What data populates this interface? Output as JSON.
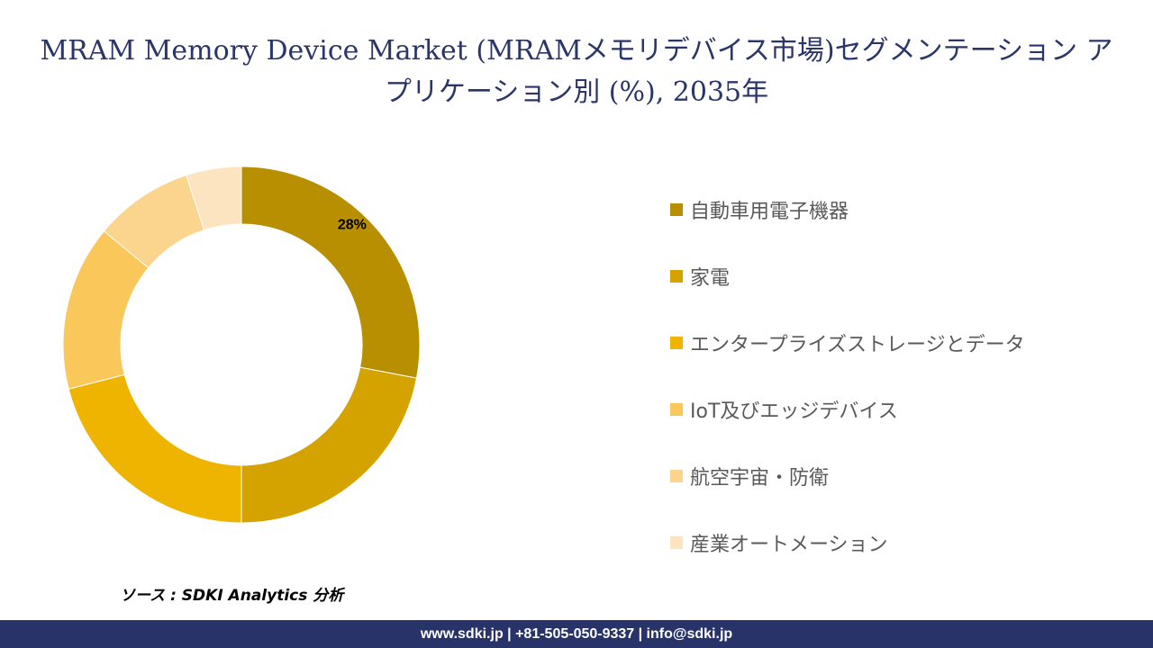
{
  "chart_data": {
    "type": "pie",
    "subtype": "donut",
    "title": "MRAM Memory Device Market (MRAMメモリデバイス市場)セグメンテーション アプリケーション別 (%), 2035年",
    "categories": [
      "自動車用電子機器",
      "家電",
      "エンタープライズストレージとデータ",
      "IoT及びエッジデバイス",
      "航空宇宙・防衛",
      "産業オートメーション"
    ],
    "values": [
      28,
      22,
      21,
      15,
      9,
      5
    ],
    "colors": [
      "#b88f00",
      "#d4a300",
      "#eeb400",
      "#fac75a",
      "#fbd48e",
      "#fde4c1"
    ],
    "data_labels": [
      "28%",
      "",
      "",
      "",
      "",
      ""
    ],
    "legend_position": "right"
  },
  "source": "ソース : SDKI Analytics 分析",
  "footer": {
    "contact": "www.sdki.jp | +81-505-050-9337 | info@sdki.jp"
  }
}
